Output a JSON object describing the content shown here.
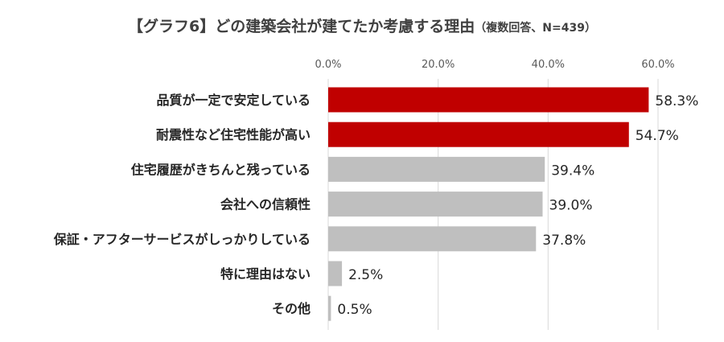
{
  "chart_data": {
    "type": "bar",
    "orientation": "horizontal",
    "title": "【グラフ6】どの建築会社が建てたか考慮する理由",
    "subtitle": "（複数回答、N=439）",
    "categories": [
      "品質が一定で安定している",
      "耐震性など住宅性能が高い",
      "住宅履歴がきちんと残っている",
      "会社への信頼性",
      "保証・アフターサービスがしっかりしている",
      "特に理由はない",
      "その他"
    ],
    "values": [
      58.3,
      54.7,
      39.4,
      39.0,
      37.8,
      2.5,
      0.5
    ],
    "value_labels": [
      "58.3%",
      "54.7%",
      "39.4%",
      "39.0%",
      "37.8%",
      "2.5%",
      "0.5%"
    ],
    "bar_colors": [
      "#c00000",
      "#c00000",
      "#bfbfbf",
      "#bfbfbf",
      "#bfbfbf",
      "#bfbfbf",
      "#bfbfbf"
    ],
    "xlim": [
      0,
      60
    ],
    "xticks": [
      "0.0%",
      "20.0%",
      "40.0%",
      "60.0%"
    ],
    "xtick_values": [
      0,
      20,
      40,
      60
    ],
    "grid": true,
    "axis_position": "top",
    "legend": "none"
  }
}
